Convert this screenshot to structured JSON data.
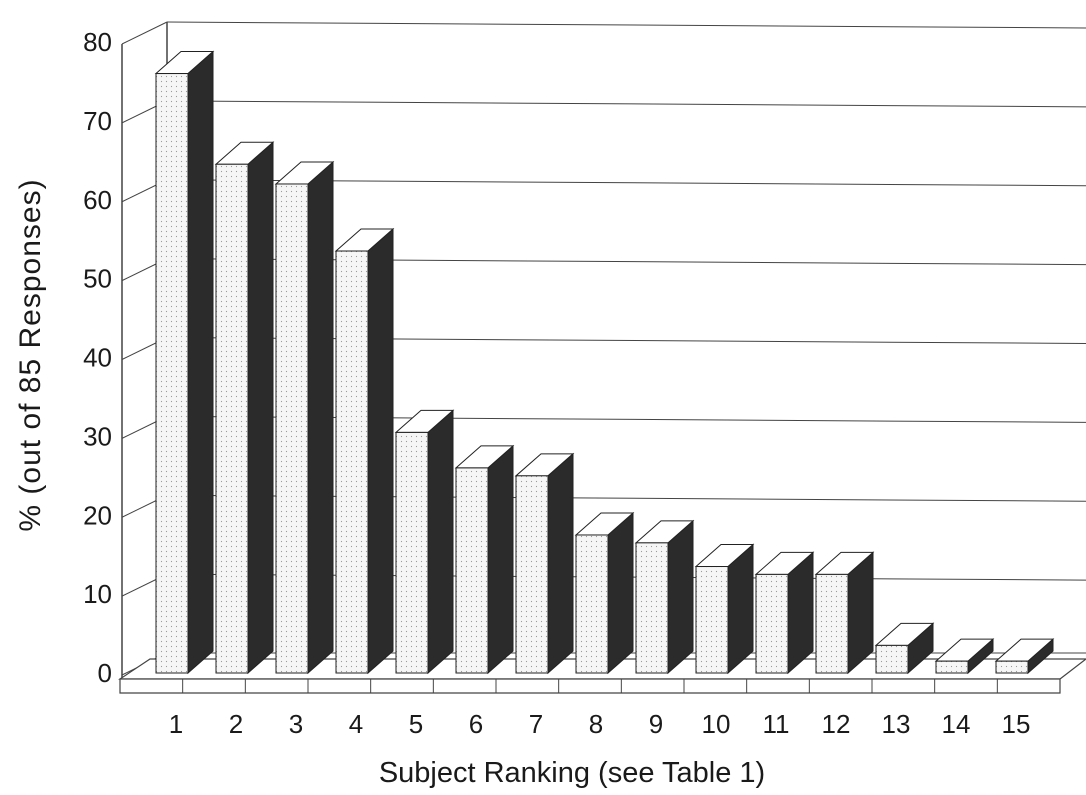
{
  "chart_data": {
    "type": "bar",
    "title": "",
    "xlabel": "Subject Ranking (see Table 1)",
    "ylabel": "% (out of 85 Responses)",
    "categories": [
      "1",
      "2",
      "3",
      "4",
      "5",
      "6",
      "7",
      "8",
      "9",
      "10",
      "11",
      "12",
      "13",
      "14",
      "15"
    ],
    "values": [
      76,
      64.5,
      62,
      53.5,
      30.5,
      26,
      25,
      17.5,
      16.5,
      13.5,
      12.5,
      12.5,
      3.5,
      1.5,
      1.5
    ],
    "ylim": [
      0,
      80
    ],
    "yticks": [
      "0",
      "10",
      "20",
      "30",
      "40",
      "50",
      "60",
      "70",
      "80"
    ],
    "grid": true,
    "style": "3d-bar",
    "colors": {
      "front": "#f4f4f4",
      "side": "#2b2b2b",
      "top": "#ffffff",
      "stroke": "#222222",
      "grid": "#444444"
    }
  }
}
